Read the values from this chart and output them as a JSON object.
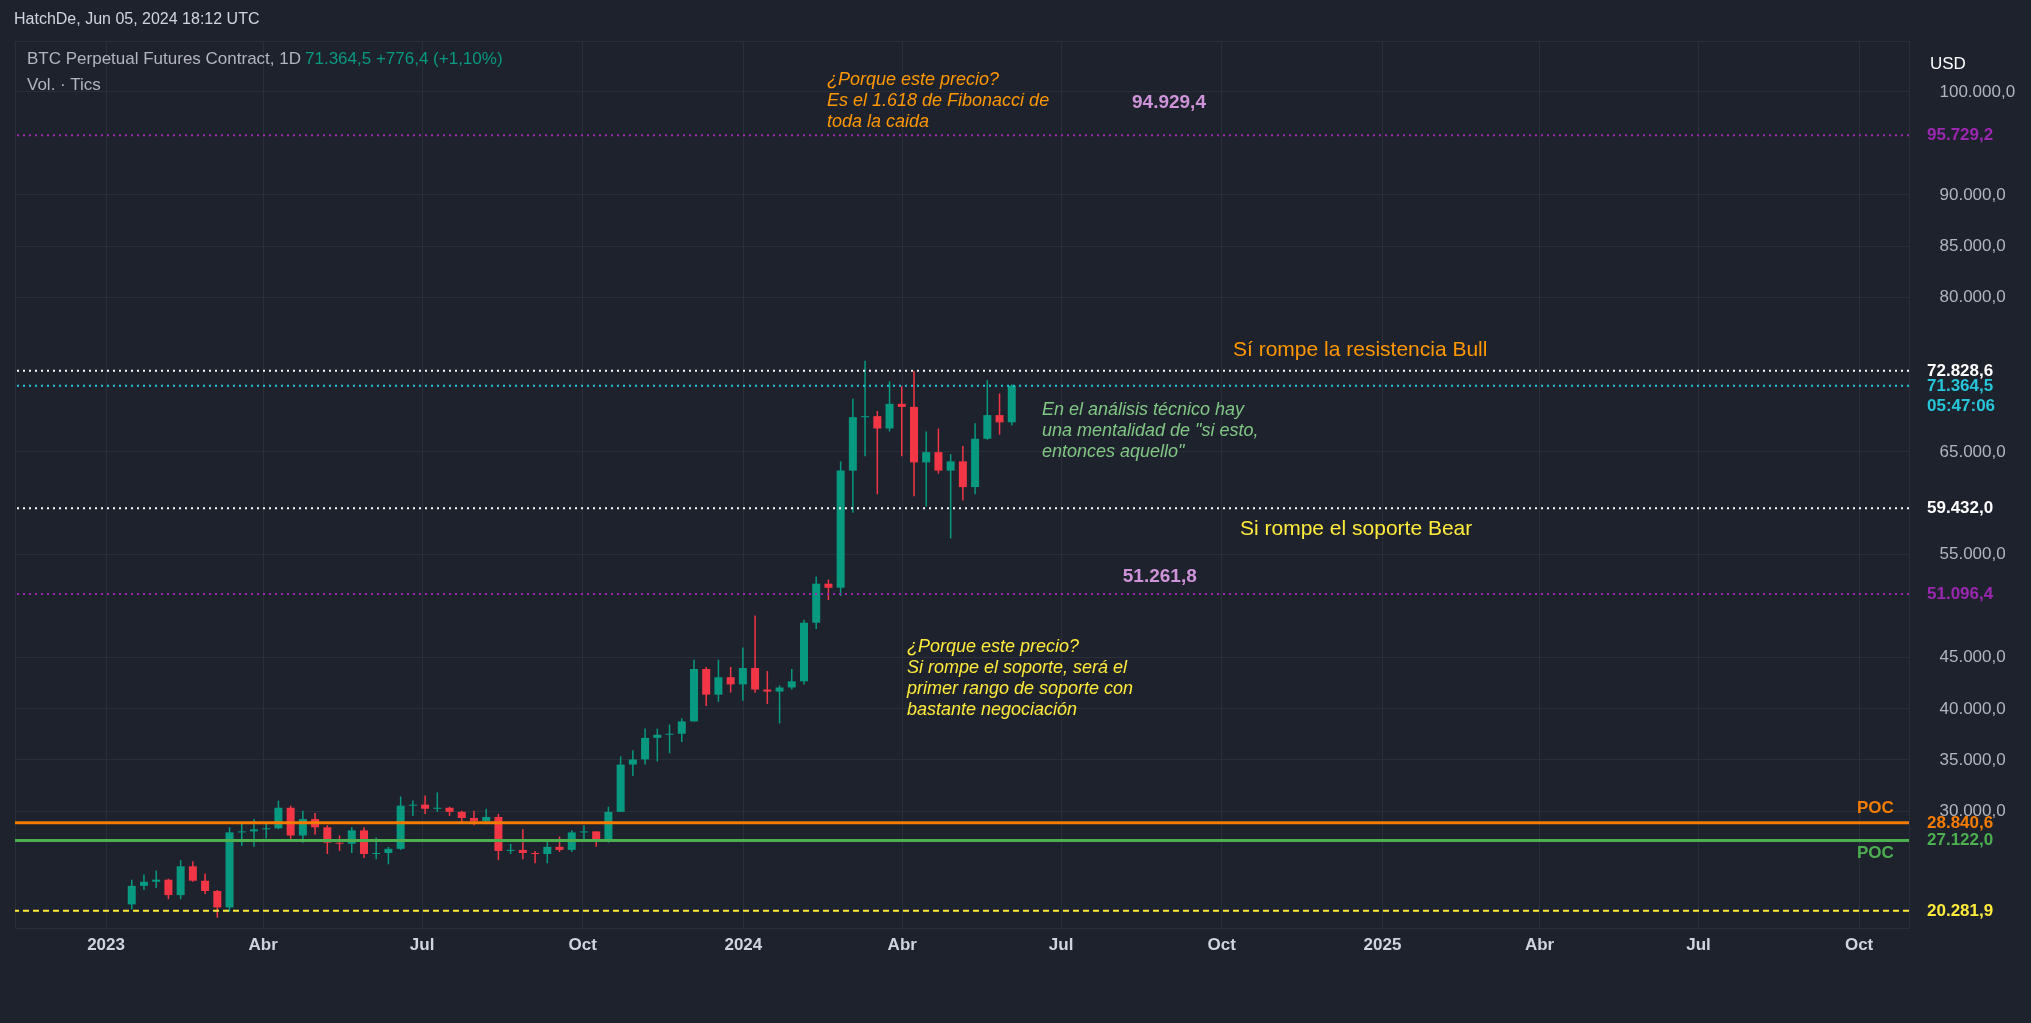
{
  "chart_data": {
    "type": "candlestick",
    "title": "BTC Perpetual Futures Contract, 1D",
    "subtitle": "71.364,5  +776,4 (+1,10%)",
    "x": [
      "2023-01-16",
      "2023-01-23",
      "2023-01-30",
      "2023-02-06",
      "2023-02-13",
      "2023-02-20",
      "2023-02-27",
      "2023-03-06",
      "2023-03-13",
      "2023-03-20",
      "2023-03-27",
      "2023-04-03",
      "2023-04-10",
      "2023-04-17",
      "2023-04-24",
      "2023-05-01",
      "2023-05-08",
      "2023-05-15",
      "2023-05-22",
      "2023-05-29",
      "2023-06-05",
      "2023-06-12",
      "2023-06-19",
      "2023-06-26",
      "2023-07-03",
      "2023-07-10",
      "2023-07-17",
      "2023-07-24",
      "2023-07-31",
      "2023-08-07",
      "2023-08-14",
      "2023-08-21",
      "2023-08-28",
      "2023-09-04",
      "2023-09-11",
      "2023-09-18",
      "2023-09-25",
      "2023-10-02",
      "2023-10-09",
      "2023-10-16",
      "2023-10-23",
      "2023-10-30",
      "2023-11-06",
      "2023-11-13",
      "2023-11-20",
      "2023-11-27",
      "2023-12-04",
      "2023-12-11",
      "2023-12-18",
      "2023-12-25",
      "2024-01-01",
      "2024-01-08",
      "2024-01-15",
      "2024-01-22",
      "2024-01-29",
      "2024-02-05",
      "2024-02-12",
      "2024-02-19",
      "2024-02-26",
      "2024-03-04",
      "2024-03-11",
      "2024-03-18",
      "2024-03-25",
      "2024-04-01",
      "2024-04-08",
      "2024-04-15",
      "2024-04-22",
      "2024-04-29",
      "2024-05-06",
      "2024-05-13",
      "2024-05-20",
      "2024-05-27",
      "2024-06-03"
    ],
    "ohlc": [
      [
        20900,
        23300,
        20400,
        22700
      ],
      [
        22700,
        23800,
        22300,
        23100
      ],
      [
        23100,
        24200,
        22500,
        23300
      ],
      [
        23300,
        23400,
        21400,
        21800
      ],
      [
        21800,
        25200,
        21400,
        24600
      ],
      [
        24600,
        25100,
        23100,
        23200
      ],
      [
        23200,
        23900,
        21900,
        22200
      ],
      [
        22200,
        22300,
        19600,
        20600
      ],
      [
        20600,
        28400,
        20200,
        27900
      ],
      [
        27900,
        28900,
        26600,
        28000
      ],
      [
        28000,
        29200,
        26500,
        28200
      ],
      [
        28200,
        28800,
        27300,
        28300
      ],
      [
        28300,
        31000,
        28200,
        30300
      ],
      [
        30300,
        30500,
        27100,
        27600
      ],
      [
        27600,
        30000,
        26900,
        29200
      ],
      [
        29200,
        29800,
        27700,
        28400
      ],
      [
        28400,
        28600,
        25800,
        26900
      ],
      [
        26900,
        27600,
        26100,
        26800
      ],
      [
        26800,
        28400,
        25900,
        28100
      ],
      [
        28100,
        28400,
        25400,
        25800
      ],
      [
        25800,
        27400,
        25300,
        25900
      ],
      [
        25900,
        26500,
        24800,
        26300
      ],
      [
        26300,
        31400,
        26200,
        30500
      ],
      [
        30500,
        31000,
        29500,
        30600
      ],
      [
        30600,
        31500,
        29700,
        30200
      ],
      [
        30200,
        31800,
        29900,
        30300
      ],
      [
        30300,
        30400,
        29500,
        29900
      ],
      [
        29900,
        30000,
        28900,
        29300
      ],
      [
        29300,
        30000,
        28600,
        29000
      ],
      [
        29000,
        30200,
        28700,
        29400
      ],
      [
        29400,
        29700,
        25200,
        26100
      ],
      [
        26100,
        26800,
        25800,
        26200
      ],
      [
        26200,
        28200,
        25300,
        25900
      ],
      [
        25900,
        26100,
        24900,
        25800
      ],
      [
        25800,
        27000,
        24900,
        26500
      ],
      [
        26500,
        27500,
        26000,
        26200
      ],
      [
        26200,
        28100,
        26000,
        27900
      ],
      [
        27900,
        28600,
        27200,
        28000
      ],
      [
        28000,
        28000,
        26500,
        27100
      ],
      [
        27100,
        30400,
        26900,
        29900
      ],
      [
        29900,
        35300,
        29900,
        34500
      ],
      [
        34500,
        35900,
        33400,
        35000
      ],
      [
        35000,
        38000,
        34500,
        37100
      ],
      [
        37100,
        38000,
        34800,
        37400
      ],
      [
        37400,
        38400,
        35600,
        37500
      ],
      [
        37500,
        39000,
        36700,
        38700
      ],
      [
        38700,
        44700,
        38700,
        43800
      ],
      [
        43800,
        44000,
        40200,
        41300
      ],
      [
        41300,
        44700,
        40600,
        43000
      ],
      [
        43000,
        44000,
        41500,
        42300
      ],
      [
        42300,
        45900,
        40700,
        43900
      ],
      [
        43900,
        49000,
        41500,
        41800
      ],
      [
        41800,
        43600,
        40400,
        41600
      ],
      [
        41600,
        42200,
        38500,
        42000
      ],
      [
        42000,
        43800,
        41800,
        42600
      ],
      [
        42600,
        48600,
        42300,
        48300
      ],
      [
        48300,
        52800,
        47700,
        52100
      ],
      [
        52100,
        52500,
        50500,
        51700
      ],
      [
        51700,
        64000,
        50900,
        63100
      ],
      [
        63100,
        70100,
        59000,
        68300
      ],
      [
        68300,
        73800,
        64500,
        68400
      ],
      [
        68400,
        68900,
        60800,
        67200
      ],
      [
        67200,
        71800,
        66900,
        69600
      ],
      [
        69600,
        71300,
        64500,
        69300
      ],
      [
        69300,
        72800,
        60600,
        63900
      ],
      [
        63900,
        66900,
        59600,
        64900
      ],
      [
        64900,
        67200,
        62800,
        63100
      ],
      [
        63100,
        64700,
        56500,
        64000
      ],
      [
        64000,
        65500,
        60200,
        61500
      ],
      [
        61500,
        67700,
        60800,
        66200
      ],
      [
        66200,
        71900,
        66100,
        68500
      ],
      [
        68500,
        70600,
        66600,
        67800
      ],
      [
        67800,
        71500,
        67500,
        71364.5
      ]
    ],
    "colors": [
      "#089981",
      "#089981",
      "#089981",
      "#f23645",
      "#089981",
      "#f23645",
      "#f23645",
      "#f23645",
      "#089981",
      "#089981",
      "#089981",
      "#089981",
      "#089981",
      "#f23645",
      "#089981",
      "#f23645",
      "#f23645",
      "#f23645",
      "#089981",
      "#f23645",
      "#089981",
      "#089981",
      "#089981",
      "#089981",
      "#f23645",
      "#089981",
      "#f23645",
      "#f23645",
      "#f23645",
      "#089981",
      "#f23645",
      "#089981",
      "#f23645",
      "#f23645",
      "#089981",
      "#f23645",
      "#089981",
      "#089981",
      "#f23645",
      "#089981",
      "#089981",
      "#089981",
      "#089981",
      "#089981",
      "#089981",
      "#089981",
      "#089981",
      "#f23645",
      "#089981",
      "#f23645",
      "#089981",
      "#f23645",
      "#f23645",
      "#089981",
      "#089981",
      "#089981",
      "#089981",
      "#f23645",
      "#089981",
      "#089981",
      "#089981",
      "#f23645",
      "#089981",
      "#f23645",
      "#f23645",
      "#089981",
      "#f23645",
      "#089981",
      "#f23645",
      "#089981",
      "#089981",
      "#f23645",
      "#089981"
    ],
    "xlim": [
      "2022-11-13",
      "2025-10-27"
    ],
    "xticks": [
      {
        "value": "2023-01-01",
        "label": "2023"
      },
      {
        "value": "2023-04-01",
        "label": "Abr"
      },
      {
        "value": "2023-07-01",
        "label": "Jul"
      },
      {
        "value": "2023-10-01",
        "label": "Oct"
      },
      {
        "value": "2024-01-01",
        "label": "2024"
      },
      {
        "value": "2024-04-01",
        "label": "Abr"
      },
      {
        "value": "2024-07-01",
        "label": "Jul"
      },
      {
        "value": "2024-10-01",
        "label": "Oct"
      },
      {
        "value": "2025-01-01",
        "label": "2025"
      },
      {
        "value": "2025-04-01",
        "label": "Abr"
      },
      {
        "value": "2025-07-01",
        "label": "Jul"
      },
      {
        "value": "2025-10-01",
        "label": "Oct"
      }
    ],
    "ylim": [
      18600,
      104900
    ],
    "yticks": [
      {
        "value": 30000,
        "label": "30.000,0"
      },
      {
        "value": 35000,
        "label": "35.000,0"
      },
      {
        "value": 40000,
        "label": "40.000,0"
      },
      {
        "value": 45000,
        "label": "45.000,0"
      },
      {
        "value": 55000,
        "label": "55.000,0"
      },
      {
        "value": 65000,
        "label": "65.000,0"
      },
      {
        "value": 80000,
        "label": "80.000,0"
      },
      {
        "value": 85000,
        "label": "85.000,0"
      },
      {
        "value": 90000,
        "label": "90.000,0"
      },
      {
        "value": 100000,
        "label": "100.000,0"
      }
    ],
    "grid": true,
    "ref_lines": [
      {
        "axis": "y",
        "value": 95729.2,
        "label": "95.729,2",
        "color": "#9c27b0",
        "line_style": "dotted"
      },
      {
        "axis": "y",
        "value": 72828.6,
        "label": "72.828,6",
        "color": "#ffffff",
        "line_style": "dotted"
      },
      {
        "axis": "y",
        "value": 71364.5,
        "label": "71.364,5",
        "color": "#26c6da",
        "line_style": "dotted"
      },
      {
        "axis": "y",
        "value": 59432.0,
        "label": "59.432,0",
        "color": "#ffffff",
        "line_style": "dotted"
      },
      {
        "axis": "y",
        "value": 51096.4,
        "label": "51.096,4",
        "color": "#9c27b0",
        "line_style": "dotted"
      },
      {
        "axis": "y",
        "value": 28840.6,
        "label": "28.840,6",
        "color": "#f57c00",
        "line_style": "solid"
      },
      {
        "axis": "y",
        "value": 27122.0,
        "label": "27.122,0",
        "color": "#4caf50",
        "line_style": "solid"
      },
      {
        "axis": "y",
        "value": 20281.9,
        "label": "20.281,9",
        "color": "#ffeb3b",
        "line_style": "dashed"
      }
    ],
    "annotations": [
      "HatchDe, Jun 05, 2024 18:12 UTC",
      "Vol. · Tics",
      "USD",
      "¿Porque  este precio?\nEs el 1.618 de Fibonacci de\ntoda la caida",
      "94.929,4",
      "Sí  rompe la resistencia Bull",
      "En el análisis técnico hay\nuna mentalidad de \"si esto,\nentonces aquello\"",
      "Si rompe el soporte Bear",
      {
        "text": "51.261,8",
        "x": "2024-08-01",
        "y": 51261.8
      },
      "¿Porque este precio?\nSi rompe el soporte, será el\nprimer rango de soporte con\nbastante negociación",
      "05:47:06",
      "POC",
      "POC"
    ]
  }
}
